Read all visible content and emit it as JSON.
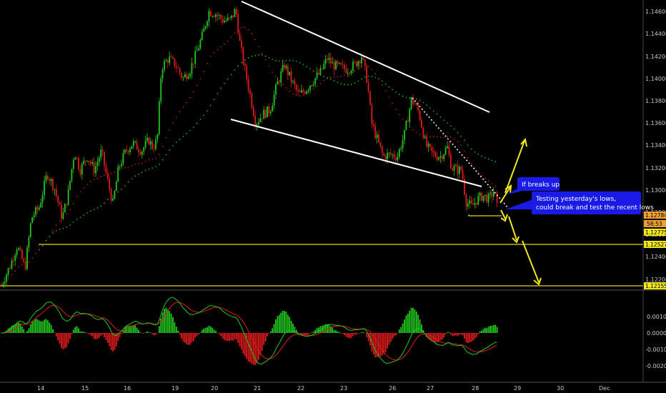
{
  "colors": {
    "background": "#000000",
    "up_candle": "#22c81e",
    "down_candle": "#e01b1b",
    "sma_fast": "#e01b1b",
    "sma_slow": "#1ec81e",
    "trendline": "#ffffff",
    "support": "#e6d21e",
    "arrow": "#f0e61e",
    "callout": "#1a1ae6",
    "last_price_tag": "#f0a030",
    "tag_yellow": "#f0e61e",
    "macd_line": "#1ec81e",
    "signal_line": "#e01b1b"
  },
  "chart_data": [
    {
      "type": "candlestick",
      "panel": "price",
      "y_axis": {
        "range": [
          1.1205,
          1.1465
        ],
        "ticks": [
          "1.14600",
          "1.14400",
          "1.14200",
          "1.14000",
          "1.13800",
          "1.13600",
          "1.13400",
          "1.13200",
          "1.13000",
          "1.12800",
          "1.12600",
          "1.12400",
          "1.12200"
        ]
      },
      "x_axis": {
        "ticks": [
          "14",
          "15",
          "16",
          "19",
          "20",
          "21",
          "22",
          "23",
          "26",
          "27",
          "28",
          "29",
          "30",
          "Dec"
        ]
      },
      "ohlc_sample": [
        {
          "day": "14",
          "open": 1.124,
          "high": 1.1262,
          "low": 1.121,
          "close": 1.1258
        },
        {
          "day": "15",
          "open": 1.1258,
          "high": 1.133,
          "low": 1.1255,
          "close": 1.1318
        },
        {
          "day": "16",
          "open": 1.1318,
          "high": 1.1342,
          "low": 1.1285,
          "close": 1.1322
        },
        {
          "day": "19",
          "open": 1.1322,
          "high": 1.1423,
          "low": 1.1315,
          "close": 1.1405
        },
        {
          "day": "20",
          "open": 1.1405,
          "high": 1.147,
          "low": 1.1395,
          "close": 1.1455
        },
        {
          "day": "21",
          "open": 1.1455,
          "high": 1.1462,
          "low": 1.1358,
          "close": 1.137
        },
        {
          "day": "22",
          "open": 1.137,
          "high": 1.1412,
          "low": 1.1362,
          "close": 1.1398
        },
        {
          "day": "23",
          "open": 1.1398,
          "high": 1.1432,
          "low": 1.1383,
          "close": 1.141
        },
        {
          "day": "26",
          "open": 1.141,
          "high": 1.142,
          "low": 1.1328,
          "close": 1.1335
        },
        {
          "day": "27",
          "open": 1.1335,
          "high": 1.1385,
          "low": 1.133,
          "close": 1.1342
        },
        {
          "day": "28",
          "open": 1.1342,
          "high": 1.135,
          "low": 1.1278,
          "close": 1.1282
        },
        {
          "day": "28",
          "open": 1.1282,
          "high": 1.1302,
          "low": 1.1275,
          "close": 1.12784
        }
      ],
      "indicators": [
        {
          "name": "moving average (red, dotted)"
        },
        {
          "name": "moving average (green, dotted)"
        }
      ],
      "price_tags": [
        {
          "label": "1.12784",
          "value": 1.12784,
          "kind": "last"
        },
        {
          "label": "58:53",
          "kind": "countdown"
        },
        {
          "label": "1.12775",
          "value": 1.12775,
          "kind": "level"
        },
        {
          "label": "1.12527",
          "value": 1.12527,
          "kind": "level"
        },
        {
          "label": "1.12155",
          "value": 1.12155,
          "kind": "level"
        }
      ],
      "annotations": [
        {
          "text": "If breaks up",
          "type": "callout"
        },
        {
          "text": "Testing yesterday's lows,",
          "type": "callout"
        },
        {
          "text": "could break and test the recent lows",
          "type": "callout"
        }
      ],
      "grid": false,
      "legend": "none"
    },
    {
      "type": "macd",
      "panel": "oscillator",
      "y_axis": {
        "range": [
          -0.0026,
          0.0017
        ],
        "ticks": [
          "0.0010",
          "0.0000",
          "-0.0010",
          "-0.0020"
        ]
      },
      "histogram_colors": [
        "#22c81e",
        "#e01b1b"
      ]
    }
  ]
}
